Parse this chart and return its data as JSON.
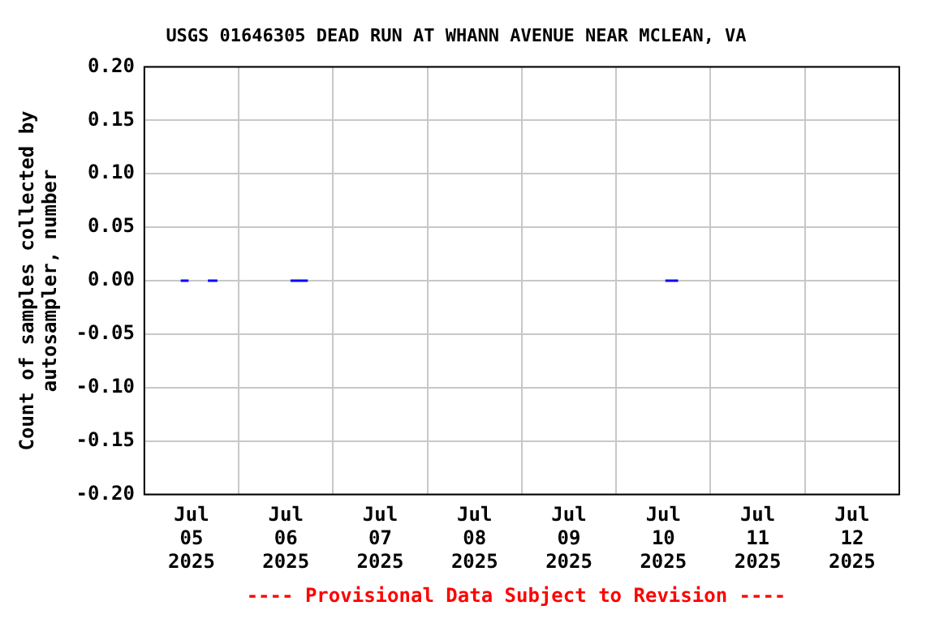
{
  "chart_data": {
    "type": "line",
    "title": "USGS 01646305 DEAD RUN AT WHANN AVENUE NEAR MCLEAN, VA",
    "ylabel": "Count of samples collected by\nautosampler, number",
    "annotations": [
      "---- Provisional Data Subject to Revision ----"
    ],
    "x": [
      "2025-07-05T09:15",
      "2025-07-05T11:15",
      "2025-07-05T13:00",
      "2025-07-05T16:10",
      "2025-07-05T18:35",
      "2025-07-06T00:00",
      "2025-07-06T13:10",
      "2025-07-06T17:35",
      "2025-07-08T00:00",
      "2025-07-10T12:30",
      "2025-07-10T15:45"
    ],
    "series": [
      {
        "color": "#0000ff",
        "values": [
          0,
          0,
          null,
          0,
          0,
          null,
          0,
          0,
          null,
          0,
          0
        ]
      }
    ],
    "xlim": [
      "2025-07-05T00:00",
      "2025-07-13T00:00"
    ],
    "xticks": [
      {
        "value": "2025-07-05T00:00",
        "label": null
      },
      {
        "value": "2025-07-05T12:00",
        "label": "Jul\n05\n2025"
      },
      {
        "value": "2025-07-06T00:00",
        "label": null
      },
      {
        "value": "2025-07-06T12:00",
        "label": "Jul\n06\n2025"
      },
      {
        "value": "2025-07-07T00:00",
        "label": null
      },
      {
        "value": "2025-07-07T12:00",
        "label": "Jul\n07\n2025"
      },
      {
        "value": "2025-07-08T00:00",
        "label": null
      },
      {
        "value": "2025-07-08T12:00",
        "label": "Jul\n08\n2025"
      },
      {
        "value": "2025-07-09T00:00",
        "label": null
      },
      {
        "value": "2025-07-09T12:00",
        "label": "Jul\n09\n2025"
      },
      {
        "value": "2025-07-10T00:00",
        "label": null
      },
      {
        "value": "2025-07-10T12:00",
        "label": "Jul\n10\n2025"
      },
      {
        "value": "2025-07-11T00:00",
        "label": null
      },
      {
        "value": "2025-07-11T12:00",
        "label": "Jul\n11\n2025"
      },
      {
        "value": "2025-07-12T00:00",
        "label": null
      },
      {
        "value": "2025-07-12T12:00",
        "label": "Jul\n12\n2025"
      },
      {
        "value": "2025-07-13T00:00",
        "label": null
      }
    ],
    "ylim": [
      -0.2,
      0.2
    ],
    "yticks": [
      {
        "value": -0.2,
        "label": "-0.20"
      },
      {
        "value": -0.15,
        "label": "-0.15"
      },
      {
        "value": -0.1,
        "label": "-0.10"
      },
      {
        "value": -0.05,
        "label": "-0.05"
      },
      {
        "value": 0,
        "label": "0.00"
      },
      {
        "value": 0.05,
        "label": "0.05"
      },
      {
        "value": 0.1,
        "label": "0.10"
      },
      {
        "value": 0.15,
        "label": "0.15"
      },
      {
        "value": 0.2,
        "label": "0.20"
      }
    ],
    "grid": true,
    "marker": "none",
    "line_style": "solid"
  }
}
